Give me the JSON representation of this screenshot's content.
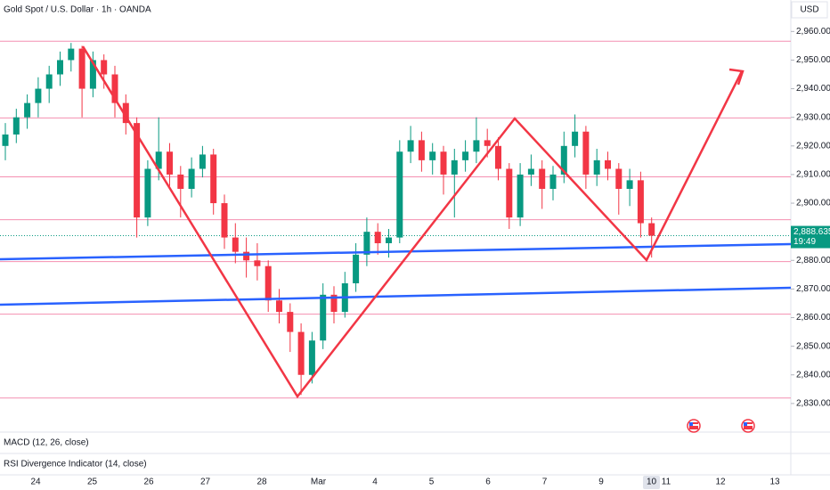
{
  "chart_data": {
    "type": "candlestick",
    "title": "Gold Spot / U.S. Dollar · 1h · OANDA",
    "currency": "USD",
    "up_color": "#089981",
    "down_color": "#f23645",
    "ohlc": [
      [
        2920,
        2928,
        2915,
        2924
      ],
      [
        2924,
        2933,
        2921,
        2930
      ],
      [
        2930,
        2938,
        2926,
        2935
      ],
      [
        2935,
        2944,
        2930,
        2940
      ],
      [
        2940,
        2948,
        2935,
        2945
      ],
      [
        2945,
        2953,
        2941,
        2950
      ],
      [
        2950,
        2956,
        2946,
        2954
      ],
      [
        2954,
        2955,
        2930,
        2940
      ],
      [
        2940,
        2953,
        2937,
        2950
      ],
      [
        2950,
        2952,
        2940,
        2945
      ],
      [
        2945,
        2948,
        2930,
        2935
      ],
      [
        2935,
        2938,
        2924,
        2928
      ],
      [
        2928,
        2930,
        2888,
        2895
      ],
      [
        2895,
        2915,
        2892,
        2912
      ],
      [
        2912,
        2930,
        2908,
        2918
      ],
      [
        2918,
        2921,
        2906,
        2910
      ],
      [
        2910,
        2913,
        2895,
        2905
      ],
      [
        2905,
        2916,
        2902,
        2912
      ],
      [
        2912,
        2920,
        2909,
        2917
      ],
      [
        2917,
        2919,
        2896,
        2900
      ],
      [
        2900,
        2903,
        2884,
        2888
      ],
      [
        2888,
        2893,
        2879,
        2883
      ],
      [
        2883,
        2888,
        2874,
        2880
      ],
      [
        2880,
        2886,
        2873,
        2878
      ],
      [
        2878,
        2880,
        2862,
        2866
      ],
      [
        2866,
        2870,
        2858,
        2862
      ],
      [
        2862,
        2865,
        2848,
        2855
      ],
      [
        2855,
        2858,
        2833,
        2840
      ],
      [
        2840,
        2855,
        2837,
        2852
      ],
      [
        2852,
        2872,
        2849,
        2868
      ],
      [
        2868,
        2871,
        2858,
        2862
      ],
      [
        2862,
        2876,
        2860,
        2872
      ],
      [
        2872,
        2886,
        2869,
        2882
      ],
      [
        2882,
        2895,
        2878,
        2890
      ],
      [
        2890,
        2893,
        2882,
        2886
      ],
      [
        2886,
        2891,
        2881,
        2888
      ],
      [
        2888,
        2922,
        2886,
        2918
      ],
      [
        2918,
        2927,
        2914,
        2922
      ],
      [
        2922,
        2925,
        2911,
        2915
      ],
      [
        2915,
        2921,
        2910,
        2918
      ],
      [
        2918,
        2920,
        2903,
        2910
      ],
      [
        2910,
        2919,
        2895,
        2915
      ],
      [
        2915,
        2922,
        2911,
        2918
      ],
      [
        2918,
        2930,
        2914,
        2922
      ],
      [
        2922,
        2926,
        2916,
        2920
      ],
      [
        2920,
        2923,
        2908,
        2912
      ],
      [
        2912,
        2914,
        2891,
        2895
      ],
      [
        2895,
        2914,
        2892,
        2910
      ],
      [
        2910,
        2917,
        2906,
        2912
      ],
      [
        2912,
        2915,
        2898,
        2905
      ],
      [
        2905,
        2913,
        2901,
        2910
      ],
      [
        2910,
        2925,
        2907,
        2920
      ],
      [
        2920,
        2931,
        2916,
        2925
      ],
      [
        2925,
        2927,
        2905,
        2910
      ],
      [
        2910,
        2919,
        2906,
        2915
      ],
      [
        2915,
        2918,
        2908,
        2912
      ],
      [
        2912,
        2914,
        2896,
        2905
      ],
      [
        2905,
        2912,
        2899,
        2908
      ],
      [
        2908,
        2911,
        2888,
        2893
      ],
      [
        2893,
        2895,
        2881,
        2888.635
      ]
    ],
    "categories": [
      "24",
      "25",
      "26",
      "27",
      "28",
      "Mar",
      "4",
      "5",
      "6",
      "7",
      "9",
      "11",
      "12",
      "13"
    ],
    "current_day": "10",
    "ylim": [
      2820,
      2971
    ],
    "yticks": [
      {
        "value": 2830,
        "label": "2,830.000"
      },
      {
        "value": 2840,
        "label": "2,840.000"
      },
      {
        "value": 2850,
        "label": "2,850.000"
      },
      {
        "value": 2860,
        "label": "2,860.000"
      },
      {
        "value": 2870,
        "label": "2,870.000"
      },
      {
        "value": 2880,
        "label": "2,880.000"
      },
      {
        "value": 2890,
        "label": "2,890.000"
      },
      {
        "value": 2900,
        "label": "2,900.000"
      },
      {
        "value": 2910,
        "label": "2,910.000"
      },
      {
        "value": 2920,
        "label": "2,920.000"
      },
      {
        "value": 2930,
        "label": "2,930.000"
      },
      {
        "value": 2940,
        "label": "2,940.000"
      },
      {
        "value": 2950,
        "label": "2,950.000"
      },
      {
        "value": 2960,
        "label": "2,960.000"
      }
    ],
    "levels": [
      2956.6,
      2929.8,
      2909.2,
      2894.2,
      2879.6,
      2861.2,
      2831.9
    ],
    "level_color": "#f48fb1",
    "last_price": {
      "value": 2888.635,
      "label": "2,888.635"
    },
    "countdown": "19:49",
    "indicators": [
      "MACD (12, 26, close)",
      "RSI Divergence Indicator (14, close)"
    ]
  }
}
